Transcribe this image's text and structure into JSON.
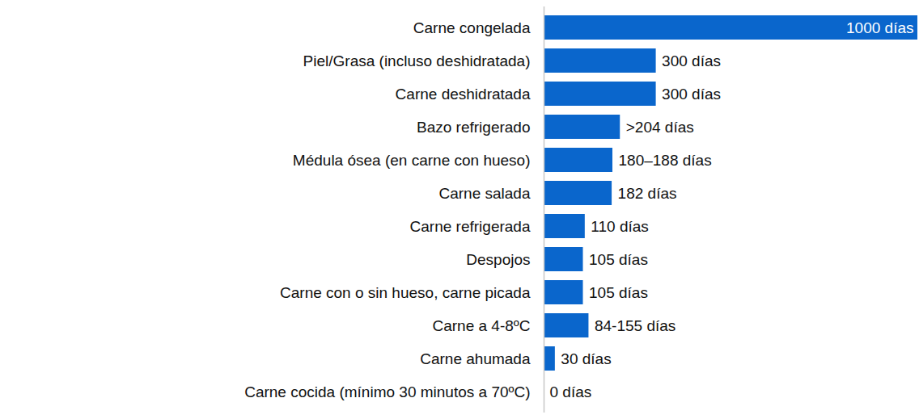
{
  "chart_data": {
    "type": "bar",
    "orientation": "horizontal",
    "categories": [
      "Carne congelada",
      "Piel/Grasa (incluso deshidratada)",
      "Carne deshidratada",
      "Bazo refrigerado",
      "Médula ósea (en carne con hueso)",
      "Carne salada",
      "Carne refrigerada",
      "Despojos",
      "Carne con o sin hueso, carne picada",
      "Carne a 4-8ºC",
      "Carne ahumada",
      "Carne cocida (mínimo 30 minutos a 70ºC)"
    ],
    "values": [
      1000,
      300,
      300,
      204,
      184,
      182,
      110,
      105,
      105,
      120,
      30,
      0
    ],
    "value_labels": [
      "1000 días",
      "300 días",
      "300 días",
      ">204 días",
      "180–188 días",
      "182 días",
      "110 días",
      "105 días",
      "105 días",
      "84-155 días",
      "30 días",
      "0 días"
    ],
    "color": "#0a66cc",
    "xlim": [
      0,
      1000
    ],
    "xticks": [],
    "grid": false,
    "data_labels": true,
    "tick_labels": "y"
  }
}
